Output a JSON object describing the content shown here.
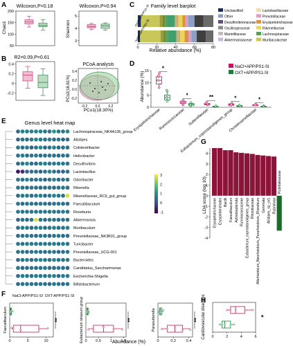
{
  "panels": {
    "A": {
      "letter": "A",
      "chao1": {
        "title": "Wilcoxon,P=0.18",
        "ylabel": "Chao1",
        "yticks": [
          "200",
          "150",
          "100",
          "50"
        ],
        "yrange": [
          50,
          200
        ],
        "boxes": [
          {
            "group": "NaCl",
            "color": "#c8507f",
            "fill": "#f0bfd3",
            "q1": 145,
            "median": 153,
            "q3": 162,
            "min": 131,
            "max": 177
          },
          {
            "group": "OXT",
            "color": "#4f9060",
            "fill": "#bcdcc4",
            "q1": 132,
            "median": 138,
            "q3": 148,
            "min": 117,
            "max": 163
          }
        ]
      },
      "shannon": {
        "title": "Wilcoxon,P=0.94",
        "ylabel": "Shannon",
        "yticks": [
          "5",
          "4",
          "3"
        ],
        "yrange": [
          2.6,
          5.4
        ],
        "boxes": [
          {
            "group": "NaCl",
            "color": "#c8507f",
            "fill": "#f0bfd3",
            "q1": 4.05,
            "median": 4.15,
            "q3": 4.3,
            "min": 3.9,
            "max": 4.4
          },
          {
            "group": "OXT",
            "color": "#4f9060",
            "fill": "#bcdcc4",
            "q1": 4.0,
            "median": 4.2,
            "q3": 4.35,
            "min": 3.85,
            "max": 4.45
          }
        ]
      }
    },
    "B": {
      "letter": "B",
      "title": "R2=0.09,P=0.61",
      "yticks": [
        "0.4",
        "0.2",
        "0",
        "-0.2"
      ],
      "yrange": [
        -0.35,
        0.45
      ],
      "boxes": [
        {
          "group": "NaCl",
          "color": "#c8507f",
          "fill": "#f0bfd3",
          "q1": 0.05,
          "median": 0.17,
          "q3": 0.24,
          "min": -0.1,
          "max": 0.35
        },
        {
          "group": "OXT",
          "color": "#4f9060",
          "fill": "#bcdcc4",
          "q1": -0.09,
          "median": 0.02,
          "q3": 0.17,
          "min": -0.25,
          "max": 0.3
        }
      ],
      "pcoa": {
        "title": "PCoA analysis",
        "xlabel": "PCo1(18.30%)",
        "ylabel": "PCo2(16.61%)",
        "yticks": [
          "0.4",
          "0.2",
          "0.0",
          "-0.2"
        ],
        "xticks": [
          "-0.2",
          "0.0",
          "0.2"
        ]
      }
    },
    "C": {
      "letter": "C",
      "title": "Family level barplot",
      "xlabel": "Relative abundance (%)",
      "xticks": [
        "0",
        "20",
        "40",
        "60",
        "80"
      ],
      "rows": [
        {
          "label": "OXT+APP/PS1-SI",
          "segments": [
            4,
            25,
            4,
            3,
            3,
            10,
            5,
            5,
            4,
            4,
            8,
            12,
            13
          ]
        },
        {
          "label": "NaCl+APP/PS1-SI",
          "segments": [
            3,
            27,
            4,
            3,
            3,
            11,
            5,
            6,
            5,
            4,
            7,
            12,
            10
          ]
        }
      ],
      "legend": [
        {
          "name": "Unclassified",
          "color": "#1b2c5a"
        },
        {
          "name": "Lactobacillaceae",
          "color": "#f2dcb4"
        },
        {
          "name": "Other",
          "color": "#8aa0c6"
        },
        {
          "name": "Prevotellaceae",
          "color": "#d9a0c2"
        },
        {
          "name": "Desulfovibrionaceae",
          "color": "#5f4b8b"
        },
        {
          "name": "Erysipelotrichaceae",
          "color": "#e48f3a"
        },
        {
          "name": "Oscillospiraceae",
          "color": "#8b8b8b"
        },
        {
          "name": "Rikenellaceae",
          "color": "#e8d55c"
        },
        {
          "name": "Marinifilaceae",
          "color": "#bdbdbd"
        },
        {
          "name": "Lachnospiraceae",
          "color": "#5aa05a"
        },
        {
          "name": "Akkermansiaceae",
          "color": "#cdb4dd"
        },
        {
          "name": "Muribaculaceae",
          "color": "#c7c75a"
        }
      ],
      "segment_colors": [
        "#1b2c5a",
        "#c7c75a",
        "#9a9a3f",
        "#6f8f2f",
        "#5aa05a",
        "#3f9f6f",
        "#c9b07a",
        "#e8d55c",
        "#e48f3a",
        "#d9a0c2",
        "#8aa0c6",
        "#3f3f3f",
        "#6a6a6a"
      ]
    },
    "D": {
      "letter": "D",
      "ylabel": "Abundance (%)",
      "yticks": [
        "15",
        "10",
        "5",
        "0"
      ],
      "yrange": [
        0,
        15
      ],
      "legend": [
        {
          "name": "NaCl+APP/PS1-SI",
          "color": "#c2185b"
        },
        {
          "name": "OXT+APP/PS1-SI",
          "color": "#1b7f3a"
        }
      ],
      "taxa": [
        {
          "name": "Erysipelotrichaceae",
          "sig": "*",
          "nacl": [
            9.5,
            11,
            12.5,
            8,
            14,
            13
          ],
          "oxt": [
            3,
            5,
            6.5,
            4,
            7,
            2.5
          ]
        },
        {
          "name": "Ruminococcaceae",
          "sig": "*",
          "nacl": [
            1.5,
            2.5,
            3,
            2,
            1
          ],
          "oxt": [
            0.8,
            1.5,
            1.2,
            2,
            0.5
          ]
        },
        {
          "name": "Sutterellaceae",
          "sig": "**",
          "nacl": [
            1,
            1.6,
            2.2,
            1.3
          ],
          "oxt": [
            0.2,
            0.4,
            0.3,
            0.6
          ]
        },
        {
          "name": "Eubacterium_coprostanoligenes_group",
          "sig": "*",
          "nacl": [
            0.8,
            1.4,
            1.1,
            1.8
          ],
          "oxt": [
            0.4,
            0.7,
            0.3,
            0.9
          ]
        },
        {
          "name": "Christensenellaceae",
          "sig": "*",
          "nacl": [
            0.9,
            1.3,
            1
          ],
          "oxt": [
            0.3,
            0.6,
            0.4
          ]
        }
      ]
    },
    "E": {
      "letter": "E",
      "title": "Genus level heat map",
      "genera": [
        "Lachnospiraceae_NK4A136_group",
        "Alistipes",
        "Colidextribacter",
        "Helicobacter",
        "Desulfovibrio",
        "Lactobacillus",
        "Odoribacter",
        "Rikenella",
        "Rikenellaceae_RC9_gut_group",
        "Faecalibaculum",
        "Roseburia",
        "Akkermansia",
        "Muribaculum",
        "Prevotellaceae_NK3B31_group",
        "Turicibacter",
        "Prevotellaceae_UCG-001",
        "Bacteroides",
        "Candidatus_Saccharimonas",
        "Escherichia-Shigella",
        "Bifidobacterium"
      ],
      "scale_ticks": [
        "3",
        "2",
        "1",
        "0",
        "-1"
      ],
      "xgroups": [
        "NaCl-APP/PS1-SI",
        "OXT-APP/PS1-SI"
      ],
      "matrix": [
        [
          0.4,
          0.6,
          0.5,
          0.8,
          0.7,
          0.5,
          0.6,
          0.4,
          0.9,
          0.6,
          0.5,
          0.7
        ],
        [
          0.3,
          0.5,
          0.4,
          0.6,
          0.8,
          0.6,
          0.5,
          0.7,
          0.4,
          0.6,
          0.3,
          0.5
        ],
        [
          0.6,
          0.4,
          0.5,
          0.3,
          0.5,
          0.7,
          0.4,
          0.5,
          0.6,
          0.3,
          0.5,
          0.4
        ],
        [
          0.5,
          0.7,
          0.4,
          0.5,
          0.6,
          0.4,
          0.5,
          0.6,
          0.5,
          0.4,
          0.6,
          0.5
        ],
        [
          0.4,
          0.5,
          0.6,
          0.4,
          0.3,
          0.5,
          0.7,
          0.5,
          0.4,
          0.6,
          0.5,
          0.3
        ],
        [
          -0.8,
          -0.5,
          0.3,
          0.5,
          0.4,
          0.2,
          0.6,
          0.8,
          0.5,
          0.4,
          0.3,
          0.6
        ],
        [
          0.5,
          0.4,
          0.6,
          0.5,
          0.4,
          0.5,
          0.3,
          0.5,
          0.6,
          0.4,
          0.5,
          0.4
        ],
        [
          0.6,
          0.5,
          0.4,
          0.6,
          0.5,
          0.4,
          0.5,
          0.6,
          0.4,
          0.5,
          0.6,
          0.5
        ],
        [
          0.4,
          0.6,
          0.5,
          0.4,
          0.6,
          0.5,
          0.4,
          0.5,
          0.6,
          0.5,
          0.4,
          2.6
        ],
        [
          0.5,
          0.4,
          0.6,
          0.5,
          0.4,
          0.6,
          0.5,
          0.4,
          0.5,
          0.6,
          0.4,
          0.5
        ],
        [
          0.6,
          0.5,
          0.4,
          0.6,
          0.5,
          0.4,
          0.6,
          0.5,
          0.4,
          0.5,
          0.6,
          0.4
        ],
        [
          0.3,
          0.5,
          0.4,
          0.6,
          2.8,
          0.5,
          0.4,
          0.6,
          0.5,
          0.4,
          0.6,
          0.5
        ],
        [
          0.5,
          0.6,
          0.5,
          0.4,
          0.6,
          0.5,
          0.4,
          0.5,
          0.6,
          0.4,
          0.5,
          0.6
        ],
        [
          0.4,
          0.5,
          0.6,
          0.5,
          0.4,
          0.6,
          0.5,
          0.4,
          0.5,
          0.6,
          0.4,
          0.5
        ],
        [
          0.6,
          0.4,
          0.5,
          0.6,
          0.5,
          0.4,
          0.6,
          0.5,
          0.4,
          0.5,
          0.6,
          0.4
        ],
        [
          0.5,
          0.6,
          0.4,
          0.5,
          0.6,
          0.5,
          0.4,
          0.6,
          0.5,
          0.4,
          0.5,
          0.6
        ],
        [
          0.4,
          0.5,
          0.6,
          0.4,
          0.5,
          0.6,
          0.5,
          0.4,
          0.6,
          0.5,
          0.4,
          0.5
        ],
        [
          0.6,
          0.4,
          0.5,
          0.6,
          0.4,
          0.5,
          0.6,
          0.5,
          0.4,
          0.6,
          0.5,
          0.4
        ],
        [
          0.5,
          0.6,
          0.4,
          0.5,
          0.6,
          0.4,
          0.5,
          0.6,
          0.5,
          0.4,
          0.6,
          0.5
        ],
        [
          0.4,
          0.5,
          0.6,
          0.5,
          0.4,
          0.6,
          0.5,
          0.4,
          0.6,
          0.5,
          0.4,
          0.6
        ]
      ]
    },
    "G": {
      "letter": "G",
      "ylabel": "LDA score (log 10)",
      "yticks": [
        "4",
        "3",
        "2",
        "1",
        "0",
        "-1",
        "-2",
        "-3",
        "-4"
      ],
      "yrange": [
        -4,
        4.5
      ],
      "bars": [
        {
          "label": "Erysipelotrichaceae",
          "value": 4.5,
          "color": "#8b1538"
        },
        {
          "label": "Erysipelotrichales",
          "value": 4.5,
          "color": "#8b1538"
        },
        {
          "label": "Bacilli",
          "value": 4.3,
          "color": "#8b1538"
        },
        {
          "label": "Faecalibaculum",
          "value": 4.3,
          "color": "#8b1538"
        },
        {
          "label": "Actinobacteriota",
          "value": 4.1,
          "color": "#8b1538"
        },
        {
          "label": "Ruminococcaceae",
          "value": 4.05,
          "color": "#8b1538"
        },
        {
          "label": "Eubacterium_coprostanoligenes_group",
          "value": 4.0,
          "color": "#8b1538"
        },
        {
          "label": "Rhizobiaceae",
          "value": 3.95,
          "color": "#8b1538"
        },
        {
          "label": "Allorhizobium_Neorhizobium_Pararhizobium_Rhizobium",
          "value": 3.85,
          "color": "#8b1538"
        },
        {
          "label": "Gemmata",
          "value": 3.8,
          "color": "#8b1538"
        },
        {
          "label": "Alistipes_sp_cv1",
          "value": 3.75,
          "color": "#8b1538"
        },
        {
          "label": "Rubrivivax",
          "value": 3.7,
          "color": "#8b1538"
        },
        {
          "label": "Rubritaleaceae",
          "value": -3.3,
          "color": "#1b6b2a"
        }
      ],
      "bar_labels": [
        "Erysipelotrichaceae",
        "Erysipelotrichales",
        "Bacilli",
        "Faecalibaculum",
        "Actinobacteriota",
        "Ruminococcaceae",
        "Eubacterium_coprostanoligenes_group",
        "Rhizobiaceae",
        "Allorhizobium_Neorhizobium_Pararhizobium_Rhizobium",
        "Gemmata",
        "Alistipes_sp_cv1",
        "Rubrivivax",
        "Rubritaleaceae"
      ]
    },
    "F": {
      "letter": "F",
      "xlabel": "Abundance (%)",
      "plots": [
        {
          "taxon": "Faecalibaculum",
          "sig": "**",
          "xticks": [
            "0",
            "5",
            "10"
          ],
          "xrange": [
            0,
            12
          ],
          "oxt": {
            "min": 0.1,
            "q1": 0.2,
            "median": 0.3,
            "q3": 0.5,
            "max": 0.8
          },
          "nacl": {
            "min": 0.5,
            "q1": 1,
            "median": 3,
            "q3": 8,
            "max": 10.5
          }
        },
        {
          "taxon": "Eubacterium siraeum group",
          "sig": "**",
          "xticks": [
            "0",
            "0.5",
            "1",
            "1.5"
          ],
          "xrange": [
            0,
            1.6
          ],
          "oxt": {
            "min": 0.02,
            "q1": 0.04,
            "median": 0.06,
            "q3": 0.09,
            "max": 0.12
          },
          "nacl": {
            "min": 0.1,
            "q1": 0.3,
            "median": 0.7,
            "q3": 1.1,
            "max": 1.45
          }
        },
        {
          "taxon": "Parasutterella",
          "sig": "**",
          "xticks": [
            "0",
            "0.2",
            "0.4"
          ],
          "xrange": [
            0,
            0.45
          ],
          "oxt": {
            "min": 0.01,
            "q1": 0.02,
            "median": 0.03,
            "q3": 0.05,
            "max": 0.07
          },
          "nacl": {
            "min": 0.05,
            "q1": 0.12,
            "median": 0.22,
            "q3": 0.32,
            "max": 0.42
          }
        }
      ]
    },
    "H": {
      "letter": "H",
      "ylabel": "Cardiovascular diseases",
      "xticks": [
        "0",
        "2",
        "4",
        "6"
      ],
      "xrange": [
        0,
        6
      ],
      "sig": "*",
      "xlabel": "",
      "nacl": {
        "min": 2,
        "q1": 2.5,
        "median": 3.2,
        "q3": 4.5,
        "max": 5.6
      },
      "oxt": {
        "min": 1,
        "q1": 1.3,
        "median": 1.7,
        "q3": 2.5,
        "max": 3.0
      }
    }
  }
}
